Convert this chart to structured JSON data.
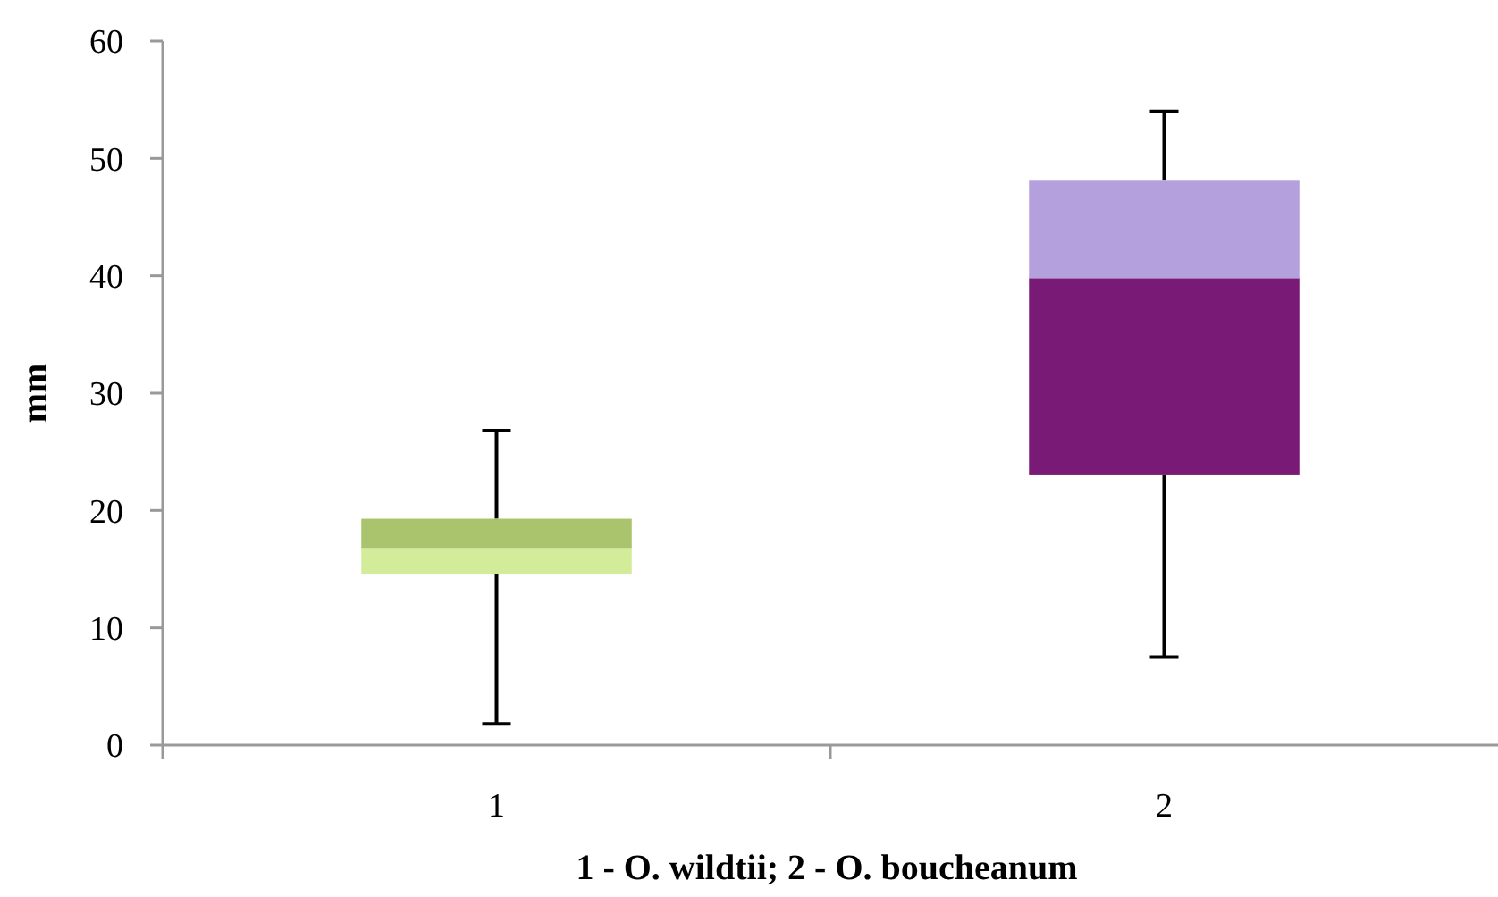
{
  "chart_data": {
    "type": "box",
    "categories": [
      "1",
      "2"
    ],
    "boxes": [
      {
        "low": 1.8,
        "q1": 14.6,
        "median": 16.8,
        "q3": 19.3,
        "high": 26.8
      },
      {
        "low": 7.5,
        "q1": 23.0,
        "median": 39.8,
        "q3": 48.1,
        "high": 54.0
      }
    ],
    "colors": [
      [
        "#d2ec9a",
        "#a9c46c"
      ],
      [
        "#7a1a77",
        "#b4a0dc"
      ]
    ],
    "ylim": [
      0,
      60
    ],
    "yticks": [
      0,
      10,
      20,
      30,
      40,
      50,
      60
    ],
    "ylabel": "mm",
    "xlabel": "1 - O. wildtii; 2 - O. boucheanum"
  }
}
